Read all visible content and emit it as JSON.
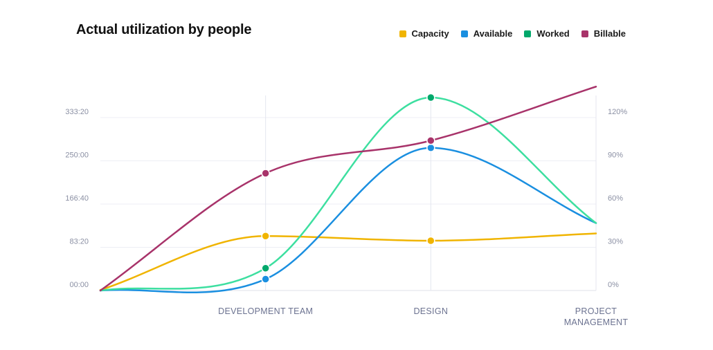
{
  "chart_data": {
    "type": "line",
    "title": "Actual utilization by people",
    "categories": [
      "",
      "DEVELOPMENT TEAM",
      "DESIGN",
      "PROJECT MANAGEMENT"
    ],
    "y_left": {
      "ticks": [
        "00:00",
        "83:20",
        "166:40",
        "250:00",
        "333:20"
      ],
      "tick_values": [
        0,
        83.33,
        166.67,
        250,
        333.33
      ],
      "range": [
        0,
        400
      ]
    },
    "y_right": {
      "ticks": [
        "0%",
        "30%",
        "60%",
        "90%",
        "120%"
      ],
      "tick_values": [
        0,
        30,
        60,
        90,
        120
      ],
      "range": [
        0,
        144
      ]
    },
    "grid": true,
    "legend_position": "top-right",
    "series": [
      {
        "name": "Capacity",
        "color": "#f0b400",
        "values": [
          1,
          105,
          96,
          110
        ]
      },
      {
        "name": "Available",
        "color": "#1a8fe0",
        "values": [
          0,
          22,
          275,
          130
        ]
      },
      {
        "name": "Worked",
        "color": "#00a86b",
        "line_color": "#3ddfa0",
        "values": [
          0,
          43,
          372,
          130
        ]
      },
      {
        "name": "Billable",
        "color": "#a8336a",
        "values": [
          0,
          226,
          289,
          393
        ]
      }
    ],
    "markers": [
      {
        "series": "Capacity",
        "x": 1,
        "y": 105
      },
      {
        "series": "Capacity",
        "x": 2,
        "y": 96
      },
      {
        "series": "Available",
        "x": 1,
        "y": 22
      },
      {
        "series": "Available",
        "x": 2,
        "y": 275
      },
      {
        "series": "Worked",
        "x": 1,
        "y": 43
      },
      {
        "series": "Worked",
        "x": 2,
        "y": 372
      },
      {
        "series": "Billable",
        "x": 1,
        "y": 226
      },
      {
        "series": "Billable",
        "x": 2,
        "y": 289
      }
    ]
  }
}
